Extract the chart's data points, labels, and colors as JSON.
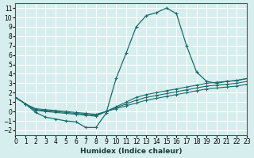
{
  "xlabel": "Humidex (Indice chaleur)",
  "ylabel": "",
  "bg_color": "#d6eeee",
  "grid_color": "#ffffff",
  "line_color": "#1a6b6b",
  "xlim": [
    0,
    23
  ],
  "ylim": [
    -2.5,
    11.5
  ],
  "xticks": [
    0,
    1,
    2,
    3,
    4,
    5,
    6,
    7,
    8,
    9,
    10,
    11,
    12,
    13,
    14,
    15,
    16,
    17,
    18,
    19,
    20,
    21,
    22,
    23
  ],
  "yticks": [
    -2,
    -1,
    0,
    1,
    2,
    3,
    4,
    5,
    6,
    7,
    8,
    9,
    10,
    11
  ],
  "line1_x": [
    0,
    1,
    2,
    3,
    4,
    5,
    6,
    7,
    8,
    9,
    10,
    11,
    12,
    13,
    14,
    15,
    16,
    17,
    18,
    19,
    20,
    21,
    22,
    23
  ],
  "line1_y": [
    1.5,
    0.8,
    -0.1,
    -0.6,
    -0.8,
    -1.0,
    -1.1,
    -1.7,
    -1.7,
    -0.2,
    3.5,
    6.2,
    9.0,
    10.2,
    10.5,
    11.0,
    10.4,
    7.0,
    4.2,
    3.2,
    3.0,
    3.2,
    3.3,
    3.5
  ],
  "line2_x": [
    0,
    1,
    2,
    3,
    4,
    5,
    6,
    7,
    8,
    9,
    10,
    11,
    12,
    13,
    14,
    15,
    16,
    17,
    18,
    19,
    20,
    21,
    22,
    23
  ],
  "line2_y": [
    1.5,
    0.8,
    0.1,
    0.0,
    -0.1,
    -0.2,
    -0.3,
    -0.4,
    -0.5,
    0.0,
    0.5,
    1.0,
    1.5,
    1.8,
    2.0,
    2.2,
    2.4,
    2.6,
    2.8,
    3.0,
    3.1,
    3.2,
    3.3,
    3.5
  ],
  "line3_x": [
    0,
    1,
    2,
    3,
    4,
    5,
    6,
    7,
    8,
    9,
    10,
    11,
    12,
    13,
    14,
    15,
    16,
    17,
    18,
    19,
    20,
    21,
    22,
    23
  ],
  "line3_y": [
    1.5,
    0.8,
    0.2,
    0.1,
    0.0,
    -0.1,
    -0.2,
    -0.3,
    -0.4,
    0.0,
    0.4,
    0.8,
    1.2,
    1.5,
    1.7,
    1.9,
    2.1,
    2.3,
    2.5,
    2.7,
    2.8,
    2.9,
    3.0,
    3.2
  ],
  "line4_x": [
    0,
    1,
    2,
    3,
    4,
    5,
    6,
    7,
    8,
    9,
    10,
    11,
    12,
    13,
    14,
    15,
    16,
    17,
    18,
    19,
    20,
    21,
    22,
    23
  ],
  "line4_y": [
    1.5,
    0.8,
    0.3,
    0.2,
    0.1,
    0.0,
    -0.1,
    -0.2,
    -0.3,
    0.0,
    0.3,
    0.6,
    0.9,
    1.2,
    1.4,
    1.6,
    1.8,
    2.0,
    2.2,
    2.4,
    2.5,
    2.6,
    2.7,
    2.9
  ]
}
